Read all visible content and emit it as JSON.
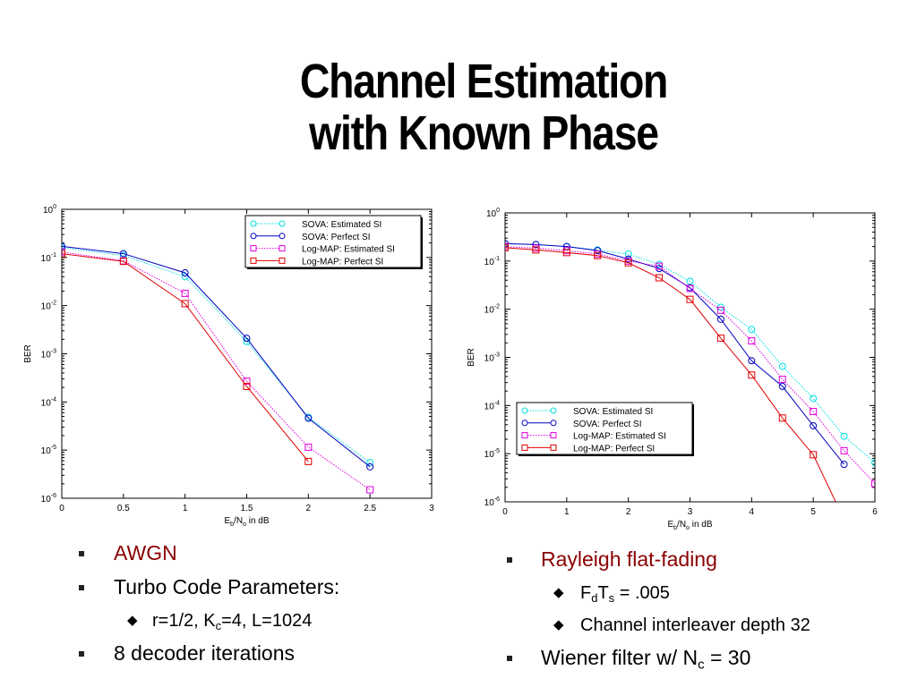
{
  "slide": {
    "title_line1": "Channel Estimation",
    "title_line2": "with Known Phase"
  },
  "charts": [
    {
      "type": "line",
      "xlabel_main": "E",
      "xlabel_sub1": "b",
      "xlabel_mid": "/N",
      "xlabel_sub2": "o",
      "xlabel_tail": " in dB",
      "ylabel": "BER",
      "xlim": [
        0,
        3
      ],
      "xticks": [
        "0",
        "0.5",
        "1",
        "1.5",
        "2",
        "2.5",
        "3"
      ],
      "yscale": "log",
      "yticks_exp": [
        "0",
        "-1",
        "-2",
        "-3",
        "-4",
        "-5",
        "-6"
      ],
      "legend_position": "top-right",
      "series": [
        {
          "name": "SOVA: Estimated SI",
          "color": "#00e0e0",
          "marker": "circle",
          "dashed": true,
          "x": [
            0,
            0.5,
            1,
            1.5,
            2,
            2.5
          ],
          "y": [
            0.16,
            0.11,
            0.04,
            0.0018,
            4.8e-05,
            5.5e-06
          ]
        },
        {
          "name": "SOVA: Perfect SI",
          "color": "#0000c0",
          "marker": "circle",
          "dashed": false,
          "x": [
            0,
            0.5,
            1,
            1.5,
            2,
            2.5
          ],
          "y": [
            0.17,
            0.12,
            0.048,
            0.0021,
            4.6e-05,
            4.5e-06
          ]
        },
        {
          "name": "Log-MAP: Estimated SI",
          "color": "#e000e0",
          "marker": "square",
          "dashed": true,
          "x": [
            0,
            0.5,
            1,
            1.5,
            2,
            2.5
          ],
          "y": [
            0.13,
            0.085,
            0.018,
            0.00027,
            1.15e-05,
            1.5e-06
          ]
        },
        {
          "name": "Log-MAP: Perfect SI",
          "color": "#e00000",
          "marker": "square",
          "dashed": false,
          "x": [
            0,
            0.5,
            1,
            1.5,
            2
          ],
          "y": [
            0.12,
            0.083,
            0.011,
            0.00021,
            5.8e-06
          ]
        }
      ]
    },
    {
      "type": "line",
      "xlabel_main": "E",
      "xlabel_sub1": "b",
      "xlabel_mid": "/N",
      "xlabel_sub2": "o",
      "xlabel_tail": " in dB",
      "ylabel": "BER",
      "xlim": [
        0,
        6
      ],
      "xticks": [
        "0",
        "1",
        "2",
        "3",
        "4",
        "5",
        "6"
      ],
      "yscale": "log",
      "yticks_exp": [
        "0",
        "-1",
        "-2",
        "-3",
        "-4",
        "-5",
        "-6"
      ],
      "legend_position": "bottom-left",
      "series": [
        {
          "name": "SOVA: Estimated SI",
          "color": "#00e0e0",
          "marker": "circle",
          "dashed": true,
          "x": [
            0,
            0.5,
            1,
            1.5,
            2,
            2.5,
            3,
            3.5,
            4,
            4.5,
            5,
            5.5,
            6
          ],
          "y": [
            0.23,
            0.22,
            0.2,
            0.17,
            0.14,
            0.085,
            0.038,
            0.011,
            0.0038,
            0.00065,
            0.00014,
            2.3e-05,
            6.5e-06
          ]
        },
        {
          "name": "SOVA: Perfect SI",
          "color": "#0000c0",
          "marker": "circle",
          "dashed": false,
          "x": [
            0,
            0.5,
            1,
            1.5,
            2,
            2.5,
            3,
            3.5,
            4,
            4.5,
            5,
            5.5
          ],
          "y": [
            0.23,
            0.22,
            0.2,
            0.165,
            0.11,
            0.07,
            0.028,
            0.0062,
            0.00085,
            0.00025,
            3.8e-05,
            6e-06
          ]
        },
        {
          "name": "Log-MAP: Estimated SI",
          "color": "#e000e0",
          "marker": "square",
          "dashed": true,
          "x": [
            0,
            0.5,
            1,
            1.5,
            2,
            2.5,
            3,
            3.5,
            4,
            4.5,
            5,
            5.5,
            6
          ],
          "y": [
            0.2,
            0.185,
            0.165,
            0.14,
            0.1,
            0.078,
            0.027,
            0.0095,
            0.0022,
            0.00035,
            7.5e-05,
            1.15e-05,
            2.4e-06
          ]
        },
        {
          "name": "Log-MAP: Perfect SI",
          "color": "#e00000",
          "marker": "square",
          "dashed": false,
          "x": [
            0,
            0.5,
            1,
            1.5,
            2,
            2.5,
            3,
            3.5,
            4,
            4.5,
            5,
            5.4
          ],
          "y": [
            0.19,
            0.17,
            0.15,
            0.13,
            0.092,
            0.045,
            0.016,
            0.0025,
            0.00043,
            5.5e-05,
            9.5e-06,
            8e-07
          ]
        }
      ]
    }
  ],
  "left_list": {
    "item1": "AWGN",
    "item2": "Turbo Code Parameters:",
    "sub1_a": "r=1/2, K",
    "sub1_b": "c",
    "sub1_c": "=4, L=1024",
    "item3": "8 decoder iterations"
  },
  "right_list": {
    "item1": "Rayleigh flat-fading",
    "sub1_a": "F",
    "sub1_b": "d",
    "sub1_c": "T",
    "sub1_d": "s",
    "sub1_e": " = .005",
    "sub2": "Channel interleaver depth 32",
    "item2_a": "Wiener filter w/ N",
    "item2_b": "c",
    "item2_c": " = 30"
  },
  "colors": {
    "title_text": "#000000",
    "highlight_text": "#8b0000"
  }
}
